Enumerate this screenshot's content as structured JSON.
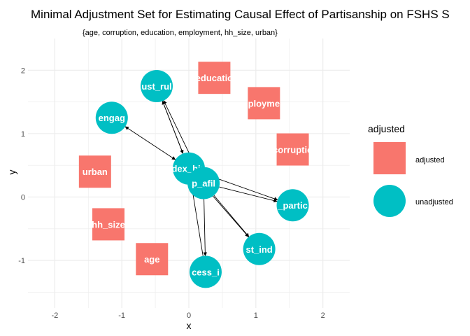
{
  "title": "Minimal Adjustment Set for Estimating Causal Effect of Partisanship on FSHS S",
  "subtitle": "{age, corruption, education, employment, hh_size, urban}",
  "axes": {
    "xlabel": "x",
    "ylabel": "y",
    "xlim": [
      -2.4,
      2.4
    ],
    "ylim": [
      -1.75,
      2.5
    ],
    "xticks": [
      -2,
      -1,
      0,
      1,
      2
    ],
    "yticks": [
      -1,
      0,
      1,
      2
    ],
    "xtick_labels": [
      "-2",
      "-1",
      "0",
      "1",
      "2"
    ],
    "ytick_labels": [
      "-1",
      "0",
      "1",
      "2"
    ]
  },
  "colors": {
    "adjusted": "#F8766D",
    "unadjusted": "#00BFC4",
    "grid": "#ebebeb",
    "edge": "#000000"
  },
  "legend": {
    "title": "adjusted",
    "items": [
      {
        "label": "adjusted",
        "shape": "square",
        "color": "#F8766D"
      },
      {
        "label": "unadjusted",
        "shape": "circle",
        "color": "#00BFC4"
      }
    ]
  },
  "chart_data": {
    "type": "dag",
    "nodes": [
      {
        "id": "education",
        "label": "educatio",
        "x": 0.38,
        "y": 1.88,
        "status": "adjusted"
      },
      {
        "id": "employment",
        "label": "ployme",
        "x": 1.12,
        "y": 1.48,
        "status": "adjusted"
      },
      {
        "id": "corruption",
        "label": "corruptio",
        "x": 1.55,
        "y": 0.75,
        "status": "adjusted"
      },
      {
        "id": "urban",
        "label": "urban",
        "x": -1.4,
        "y": 0.4,
        "status": "adjusted"
      },
      {
        "id": "hh_size",
        "label": "hh_size",
        "x": -1.2,
        "y": -0.43,
        "status": "adjusted"
      },
      {
        "id": "age",
        "label": "age",
        "x": -0.55,
        "y": -0.98,
        "status": "adjusted"
      },
      {
        "id": "trust_ruling",
        "label": "ust_rul",
        "x": -0.48,
        "y": 1.75,
        "status": "unadjusted"
      },
      {
        "id": "civic_engagement",
        "label": "engag",
        "x": -1.15,
        "y": 1.25,
        "status": "unadjusted"
      },
      {
        "id": "index_bin",
        "label": "dex_bin",
        "x": 0.0,
        "y": 0.45,
        "status": "unadjusted"
      },
      {
        "id": "p_afil",
        "label": "p_afil",
        "x": 0.22,
        "y": 0.22,
        "status": "unadjusted"
      },
      {
        "id": "partisanship",
        "label": "_partic",
        "x": 1.55,
        "y": -0.13,
        "status": "unadjusted"
      },
      {
        "id": "trust_ind",
        "label": "st_ind",
        "x": 1.05,
        "y": -0.82,
        "status": "unadjusted"
      },
      {
        "id": "access_info",
        "label": "cess_i",
        "x": 0.25,
        "y": -1.18,
        "status": "unadjusted"
      }
    ],
    "edges": [
      {
        "from": "index_bin",
        "to": "trust_ruling",
        "head": "end"
      },
      {
        "from": "trust_ruling",
        "to": "index_bin",
        "head": "end"
      },
      {
        "from": "p_afil",
        "to": "trust_ruling",
        "head": "end"
      },
      {
        "from": "civic_engagement",
        "to": "index_bin",
        "head": "both"
      },
      {
        "from": "index_bin",
        "to": "partisanship",
        "head": "end"
      },
      {
        "from": "p_afil",
        "to": "partisanship",
        "head": "end"
      },
      {
        "from": "index_bin",
        "to": "trust_ind",
        "head": "end"
      },
      {
        "from": "p_afil",
        "to": "trust_ind",
        "head": "end"
      },
      {
        "from": "access_info",
        "to": "index_bin",
        "head": "end"
      },
      {
        "from": "p_afil",
        "to": "access_info",
        "head": "end"
      }
    ]
  }
}
